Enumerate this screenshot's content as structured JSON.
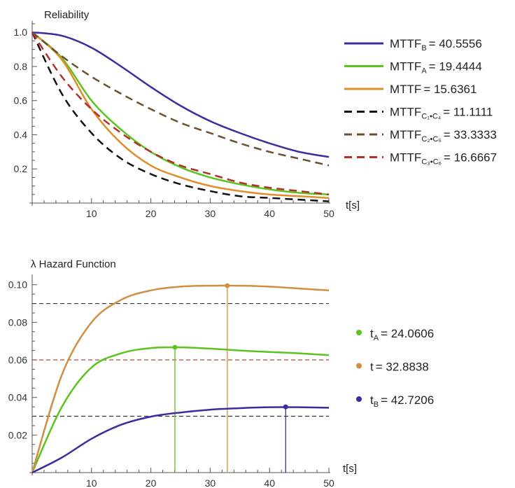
{
  "chart_data": [
    {
      "type": "line",
      "title": "Reliability",
      "xlabel": "t[s]",
      "ylabel": "Reliability",
      "xlim": [
        0,
        50
      ],
      "ylim": [
        0,
        1.05
      ],
      "xticks": [
        10,
        20,
        30,
        40,
        50
      ],
      "yticks": [
        0.2,
        0.4,
        0.6,
        0.8,
        1.0
      ],
      "ytick_labels": [
        "0.2",
        "0.4",
        "0.6",
        "0.8",
        "1.0"
      ],
      "legend_position": "right",
      "x": [
        0,
        5,
        10,
        15,
        20,
        25,
        30,
        35,
        40,
        45,
        50
      ],
      "series": [
        {
          "name": "MTTF_B = 40.5556",
          "legend_main": "MTTF",
          "legend_sub": "B",
          "legend_value": "= 40.5556",
          "color": "#3f2aa0",
          "dash": "solid",
          "values": [
            1.0,
            0.98,
            0.91,
            0.8,
            0.68,
            0.57,
            0.48,
            0.41,
            0.35,
            0.3,
            0.27
          ]
        },
        {
          "name": "MTTF_A = 19.4444",
          "legend_main": "MTTF",
          "legend_sub": "A",
          "legend_value": "= 19.4444",
          "color": "#5cc41e",
          "dash": "solid",
          "values": [
            1.0,
            0.85,
            0.6,
            0.43,
            0.3,
            0.21,
            0.15,
            0.11,
            0.08,
            0.06,
            0.05
          ]
        },
        {
          "name": "MTTF = 15.6361",
          "legend_main": "MTTF",
          "legend_sub": "",
          "legend_value": "= 15.6361",
          "color": "#e08e2b",
          "dash": "solid",
          "values": [
            1.0,
            0.84,
            0.55,
            0.35,
            0.22,
            0.15,
            0.1,
            0.07,
            0.05,
            0.04,
            0.03
          ]
        },
        {
          "name": "MTTF_C1•C4 = 11.1111",
          "legend_main": "MTTF",
          "legend_sub": "C₁•C₄",
          "legend_value": "= 11.1111",
          "color": "#111111",
          "dash": "dashed",
          "values": [
            1.0,
            0.64,
            0.41,
            0.26,
            0.17,
            0.11,
            0.07,
            0.04,
            0.03,
            0.02,
            0.01
          ]
        },
        {
          "name": "MTTF_C2•C5 = 33.3333",
          "legend_main": "MTTF",
          "legend_sub": "C₂•C₅",
          "legend_value": "= 33.3333",
          "color": "#6b5031",
          "dash": "dashed",
          "values": [
            1.0,
            0.86,
            0.74,
            0.64,
            0.55,
            0.47,
            0.41,
            0.35,
            0.3,
            0.26,
            0.22
          ]
        },
        {
          "name": "MTTF_C3•C6 = 16.6667",
          "legend_main": "MTTF",
          "legend_sub": "C₃•C₆",
          "legend_value": "= 16.6667",
          "color": "#b1302b",
          "dash": "dashed",
          "values": [
            1.0,
            0.74,
            0.55,
            0.41,
            0.3,
            0.22,
            0.17,
            0.12,
            0.09,
            0.07,
            0.05
          ]
        }
      ]
    },
    {
      "type": "line",
      "title": "λ  Hazard Function",
      "xlabel": "t[s]",
      "ylabel": "λ",
      "xlim": [
        0,
        50
      ],
      "ylim": [
        0,
        0.104
      ],
      "xticks": [
        10,
        20,
        30,
        40,
        50
      ],
      "yticks": [
        0.02,
        0.04,
        0.06,
        0.08,
        0.1
      ],
      "ytick_labels": [
        "0.02",
        "0.04",
        "0.06",
        "0.08",
        "0.10"
      ],
      "legend_position": "right",
      "x": [
        0,
        5,
        10,
        15,
        20,
        25,
        30,
        35,
        40,
        45,
        50
      ],
      "series": [
        {
          "name": "t_A = 24.0606",
          "legend_main": "t",
          "legend_sub": "A",
          "legend_value": "= 24.0606",
          "color": "#5cc41e",
          "values": [
            0.0,
            0.035,
            0.056,
            0.0635,
            0.0663,
            0.0667,
            0.066,
            0.065,
            0.0642,
            0.0635,
            0.0625
          ],
          "peak": {
            "x": 24.0606,
            "y": 0.0667
          }
        },
        {
          "name": "t = 32.8838",
          "legend_main": "t",
          "legend_sub": "",
          "legend_value": "= 32.8838",
          "color": "#d08f42",
          "values": [
            0.0,
            0.052,
            0.08,
            0.092,
            0.097,
            0.099,
            0.0995,
            0.0995,
            0.099,
            0.098,
            0.097
          ],
          "peak": {
            "x": 32.8838,
            "y": 0.0995
          }
        },
        {
          "name": "t_B = 42.7206",
          "legend_main": "t",
          "legend_sub": "B",
          "legend_value": "= 42.7206",
          "color": "#3f2aa0",
          "values": [
            0.0,
            0.008,
            0.018,
            0.0255,
            0.0298,
            0.032,
            0.0335,
            0.0343,
            0.0348,
            0.0348,
            0.0345
          ],
          "peak": {
            "x": 42.7206,
            "y": 0.035
          }
        }
      ],
      "reference_lines": [
        {
          "y": 0.09,
          "color": "#333333"
        },
        {
          "y": 0.06,
          "color": "#b1302b"
        },
        {
          "y": 0.03,
          "color": "#333333"
        }
      ]
    }
  ]
}
